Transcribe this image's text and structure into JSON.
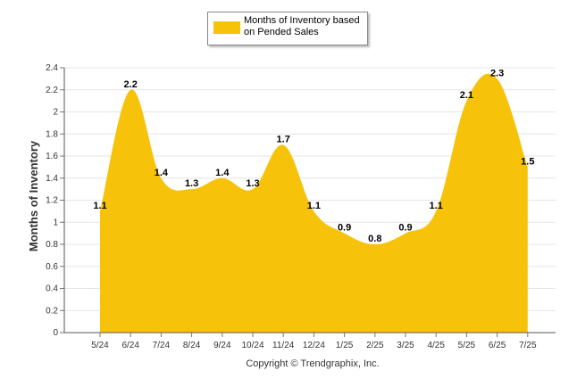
{
  "chart_data": {
    "type": "area",
    "categories": [
      "5/24",
      "6/24",
      "7/24",
      "8/24",
      "9/24",
      "10/24",
      "11/24",
      "12/24",
      "1/25",
      "2/25",
      "3/25",
      "4/25",
      "5/25",
      "6/25",
      "7/25"
    ],
    "series": [
      {
        "name": "Months of Inventory based on Pended Sales",
        "values": [
          1.1,
          2.2,
          1.4,
          1.3,
          1.4,
          1.3,
          1.7,
          1.1,
          0.9,
          0.8,
          0.9,
          1.1,
          2.1,
          2.3,
          1.5
        ]
      }
    ],
    "data_labels": [
      "1.1",
      "2.2",
      "1.4",
      "1.3",
      "1.4",
      "1.3",
      "1.7",
      "1.1",
      "0.9",
      "0.8",
      "0.9",
      "1.1",
      "2.1",
      "2.3",
      "1.5"
    ],
    "ylabel": "Months of Inventory",
    "yticks": [
      "0",
      "0.2",
      "0.4",
      "0.6",
      "0.8",
      "1",
      "1.2",
      "1.4",
      "1.6",
      "1.8",
      "2",
      "2.2",
      "2.4"
    ],
    "ylim": [
      0,
      2.4
    ],
    "grid": true,
    "legend_position": "top-center",
    "colors": {
      "fill": "#f7c30a",
      "grid": "#e6e6e6",
      "axis": "#333333"
    }
  },
  "footer": {
    "copyright": "Copyright © Trendgraphix, Inc."
  }
}
